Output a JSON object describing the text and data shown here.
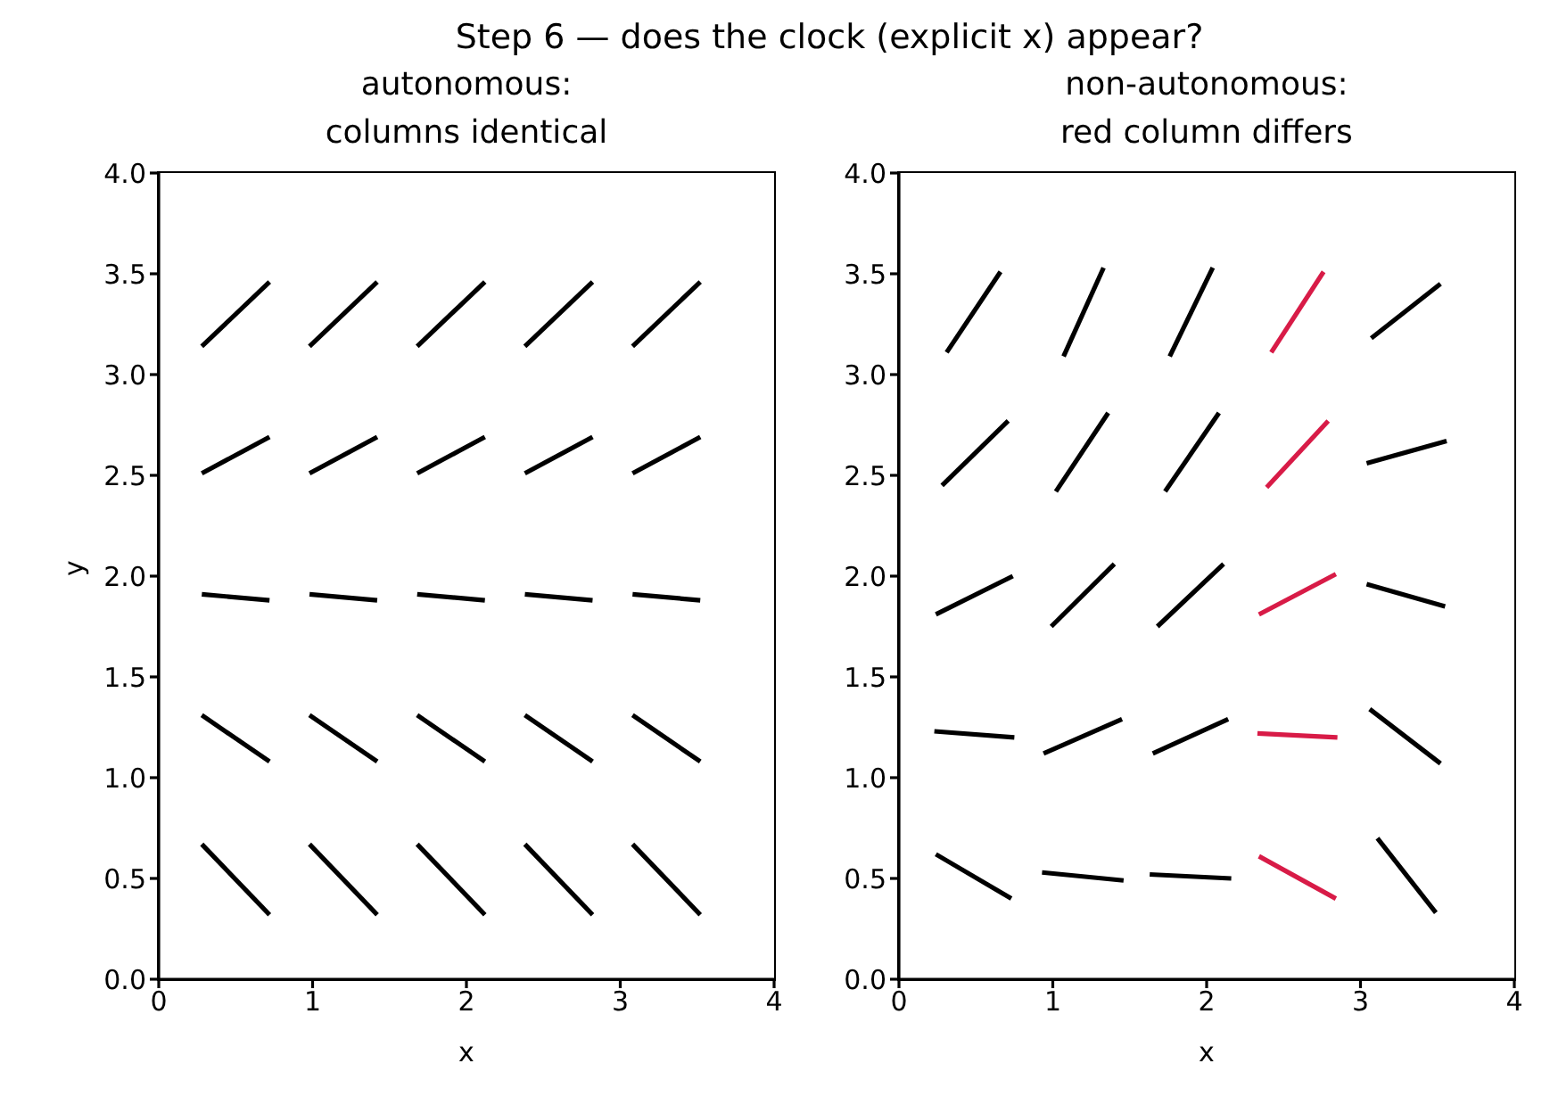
{
  "chart_data": [
    {
      "type": "line",
      "title": "autonomous:\ncolumns identical",
      "xlabel": "x",
      "ylabel": "y",
      "annotations": [
        "Step 6 — does the clock (explicit x) appear?"
      ],
      "xlim": [
        0,
        4
      ],
      "ylim": [
        0,
        4
      ],
      "xticks": [
        0,
        1,
        2,
        3,
        4
      ],
      "yticks": [
        {
          "value": 0,
          "label": "0.0"
        },
        {
          "value": 0.5,
          "label": "0.5"
        },
        {
          "value": 1,
          "label": "1.0"
        },
        {
          "value": 1.5,
          "label": "1.5"
        },
        {
          "value": 2,
          "label": "2.0"
        },
        {
          "value": 2.5,
          "label": "2.5"
        },
        {
          "value": 3,
          "label": "3.0"
        },
        {
          "value": 3.5,
          "label": "3.5"
        },
        {
          "value": 4,
          "label": "4.0"
        }
      ],
      "grid": false,
      "marker": "none",
      "line_style": "solid",
      "series": [
        {
          "color": "#000000",
          "x": [
            0.28,
            0.72
          ],
          "values": [
            0.67,
            0.32
          ]
        },
        {
          "color": "#000000",
          "x": [
            0.98,
            1.42
          ],
          "values": [
            0.67,
            0.32
          ]
        },
        {
          "color": "#000000",
          "x": [
            1.68,
            2.12
          ],
          "values": [
            0.67,
            0.32
          ]
        },
        {
          "color": "#000000",
          "x": [
            2.38,
            2.82
          ],
          "values": [
            0.67,
            0.32
          ]
        },
        {
          "color": "#000000",
          "x": [
            3.08,
            3.52
          ],
          "values": [
            0.67,
            0.32
          ]
        },
        {
          "color": "#000000",
          "x": [
            0.28,
            0.72
          ],
          "values": [
            1.31,
            1.08
          ]
        },
        {
          "color": "#000000",
          "x": [
            0.98,
            1.42
          ],
          "values": [
            1.31,
            1.08
          ]
        },
        {
          "color": "#000000",
          "x": [
            1.68,
            2.12
          ],
          "values": [
            1.31,
            1.08
          ]
        },
        {
          "color": "#000000",
          "x": [
            2.38,
            2.82
          ],
          "values": [
            1.31,
            1.08
          ]
        },
        {
          "color": "#000000",
          "x": [
            3.08,
            3.52
          ],
          "values": [
            1.31,
            1.08
          ]
        },
        {
          "color": "#000000",
          "x": [
            0.28,
            0.72
          ],
          "values": [
            1.91,
            1.88
          ]
        },
        {
          "color": "#000000",
          "x": [
            0.98,
            1.42
          ],
          "values": [
            1.91,
            1.88
          ]
        },
        {
          "color": "#000000",
          "x": [
            1.68,
            2.12
          ],
          "values": [
            1.91,
            1.88
          ]
        },
        {
          "color": "#000000",
          "x": [
            2.38,
            2.82
          ],
          "values": [
            1.91,
            1.88
          ]
        },
        {
          "color": "#000000",
          "x": [
            3.08,
            3.52
          ],
          "values": [
            1.91,
            1.88
          ]
        },
        {
          "color": "#000000",
          "x": [
            0.28,
            0.72
          ],
          "values": [
            2.51,
            2.69
          ]
        },
        {
          "color": "#000000",
          "x": [
            0.98,
            1.42
          ],
          "values": [
            2.51,
            2.69
          ]
        },
        {
          "color": "#000000",
          "x": [
            1.68,
            2.12
          ],
          "values": [
            2.51,
            2.69
          ]
        },
        {
          "color": "#000000",
          "x": [
            2.38,
            2.82
          ],
          "values": [
            2.51,
            2.69
          ]
        },
        {
          "color": "#000000",
          "x": [
            3.08,
            3.52
          ],
          "values": [
            2.51,
            2.69
          ]
        },
        {
          "color": "#000000",
          "x": [
            0.28,
            0.72
          ],
          "values": [
            3.14,
            3.46
          ]
        },
        {
          "color": "#000000",
          "x": [
            0.98,
            1.42
          ],
          "values": [
            3.14,
            3.46
          ]
        },
        {
          "color": "#000000",
          "x": [
            1.68,
            2.12
          ],
          "values": [
            3.14,
            3.46
          ]
        },
        {
          "color": "#000000",
          "x": [
            2.38,
            2.82
          ],
          "values": [
            3.14,
            3.46
          ]
        },
        {
          "color": "#000000",
          "x": [
            3.08,
            3.52
          ],
          "values": [
            3.14,
            3.46
          ]
        }
      ]
    },
    {
      "type": "line",
      "title": "non-autonomous:\nred column differs",
      "xlabel": "x",
      "xlim": [
        0,
        4
      ],
      "ylim": [
        0,
        4
      ],
      "xticks": [
        0,
        1,
        2,
        3,
        4
      ],
      "yticks": [
        {
          "value": 0,
          "label": "0.0"
        },
        {
          "value": 0.5,
          "label": "0.5"
        },
        {
          "value": 1,
          "label": "1.0"
        },
        {
          "value": 1.5,
          "label": "1.5"
        },
        {
          "value": 2,
          "label": "2.0"
        },
        {
          "value": 2.5,
          "label": "2.5"
        },
        {
          "value": 3,
          "label": "3.0"
        },
        {
          "value": 3.5,
          "label": "3.5"
        },
        {
          "value": 4,
          "label": "4.0"
        }
      ],
      "grid": false,
      "marker": "none",
      "line_style": "solid",
      "series": [
        {
          "color": "#000000",
          "x": [
            0.24,
            0.73
          ],
          "values": [
            0.62,
            0.4
          ]
        },
        {
          "color": "#000000",
          "x": [
            0.93,
            1.46
          ],
          "values": [
            0.53,
            0.49
          ]
        },
        {
          "color": "#000000",
          "x": [
            1.63,
            2.16
          ],
          "values": [
            0.52,
            0.5
          ]
        },
        {
          "color": "#d81b47",
          "x": [
            2.34,
            2.84
          ],
          "values": [
            0.61,
            0.4
          ]
        },
        {
          "color": "#000000",
          "x": [
            3.11,
            3.49
          ],
          "values": [
            0.7,
            0.33
          ]
        },
        {
          "color": "#000000",
          "x": [
            0.23,
            0.75
          ],
          "values": [
            1.23,
            1.2
          ]
        },
        {
          "color": "#000000",
          "x": [
            0.94,
            1.45
          ],
          "values": [
            1.12,
            1.29
          ]
        },
        {
          "color": "#000000",
          "x": [
            1.65,
            2.14
          ],
          "values": [
            1.12,
            1.29
          ]
        },
        {
          "color": "#d81b47",
          "x": [
            2.33,
            2.85
          ],
          "values": [
            1.22,
            1.2
          ]
        },
        {
          "color": "#000000",
          "x": [
            3.06,
            3.52
          ],
          "values": [
            1.34,
            1.07
          ]
        },
        {
          "color": "#000000",
          "x": [
            0.24,
            0.74
          ],
          "values": [
            1.81,
            2.0
          ]
        },
        {
          "color": "#000000",
          "x": [
            0.99,
            1.4
          ],
          "values": [
            1.75,
            2.06
          ]
        },
        {
          "color": "#000000",
          "x": [
            1.68,
            2.11
          ],
          "values": [
            1.75,
            2.06
          ]
        },
        {
          "color": "#d81b47",
          "x": [
            2.34,
            2.84
          ],
          "values": [
            1.81,
            2.01
          ]
        },
        {
          "color": "#000000",
          "x": [
            3.04,
            3.55
          ],
          "values": [
            1.96,
            1.85
          ]
        },
        {
          "color": "#000000",
          "x": [
            0.28,
            0.71
          ],
          "values": [
            2.45,
            2.77
          ]
        },
        {
          "color": "#000000",
          "x": [
            1.02,
            1.36
          ],
          "values": [
            2.42,
            2.81
          ]
        },
        {
          "color": "#000000",
          "x": [
            1.73,
            2.08
          ],
          "values": [
            2.42,
            2.81
          ]
        },
        {
          "color": "#d81b47",
          "x": [
            2.39,
            2.79
          ],
          "values": [
            2.44,
            2.77
          ]
        },
        {
          "color": "#000000",
          "x": [
            3.04,
            3.56
          ],
          "values": [
            2.56,
            2.67
          ]
        },
        {
          "color": "#000000",
          "x": [
            0.31,
            0.66
          ],
          "values": [
            3.11,
            3.51
          ]
        },
        {
          "color": "#000000",
          "x": [
            1.07,
            1.33
          ],
          "values": [
            3.09,
            3.53
          ]
        },
        {
          "color": "#000000",
          "x": [
            1.76,
            2.04
          ],
          "values": [
            3.09,
            3.53
          ]
        },
        {
          "color": "#d81b47",
          "x": [
            2.42,
            2.76
          ],
          "values": [
            3.11,
            3.51
          ]
        },
        {
          "color": "#000000",
          "x": [
            3.07,
            3.52
          ],
          "values": [
            3.18,
            3.45
          ]
        }
      ]
    }
  ]
}
